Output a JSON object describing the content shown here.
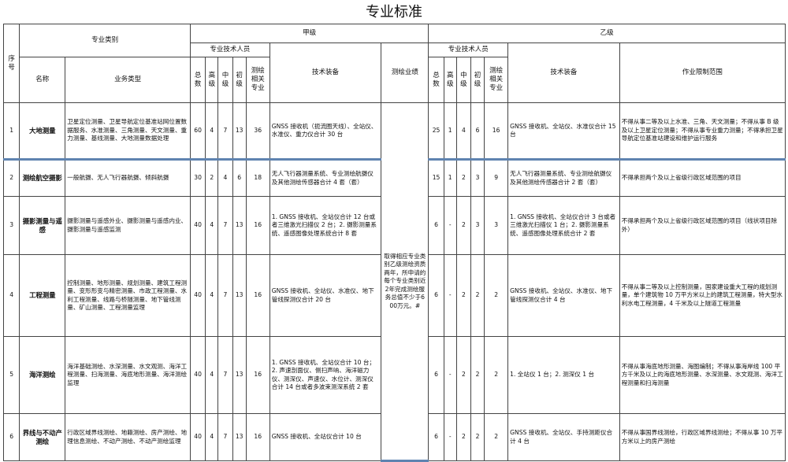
{
  "title": "专业标准",
  "headers": {
    "seq": "序号",
    "category": "专业类别",
    "grade_a": "甲级",
    "grade_b": "乙级",
    "staff": "专业技术人员",
    "survey_major": "测绘专业",
    "name": "名称",
    "biz": "业务类型",
    "total": "总数",
    "high": "高级",
    "mid": "中级",
    "init": "初级",
    "related": "测绘相关专业",
    "equip": "技术装备",
    "perf": "测绘业绩",
    "limit": "作业限制范围"
  },
  "performance_text": "取得相应专业类别乙级测绘资质两年，所申请的每个专业类别近2年完成测绘服务总值不少于600万元。#",
  "rows": [
    {
      "no": "1",
      "name": "大地测量",
      "biz": "卫星定位测量、卫星导航定位基准站网位置数据服务、水准测量、三角测量、天文测量、重力测量、基线测量、大地测量数据处理",
      "a": {
        "total": "60",
        "high": "4",
        "mid": "7",
        "init": "13",
        "related": "36",
        "equip": "GNSS 接收机（扼流圈天线）、全站仪、水准仪、重力仪合计 30 台"
      },
      "b": {
        "total": "25",
        "high": "1",
        "mid": "4",
        "init": "6",
        "related": "16",
        "equip": "GNSS 接收机、全站仪、水准仪合计 15 台"
      },
      "limit": "不得从事二等及以上水准、三角、天文测量；不得从事 B 级及以上卫星定位测量；不得从事专业重力测量；不得承担卫星导航定位基准站建设和维护运行服务"
    },
    {
      "no": "2",
      "name": "测绘航空摄影",
      "biz": "一般航摄、无人飞行器航摄、倾斜航摄",
      "a": {
        "total": "30",
        "high": "2",
        "mid": "4",
        "init": "6",
        "related": "18",
        "equip": "无人飞行器测量系统、专业测绘航摄仪及其他测绘传感器合计 4 套（套）"
      },
      "b": {
        "total": "15",
        "high": "1",
        "mid": "2",
        "init": "3",
        "related": "9",
        "equip": "无人飞行器测量系统、专业测绘航摄仪及其他测绘传感器合计 2 套（套）"
      },
      "limit": "不得承担两个及以上省级行政区域范围的项目"
    },
    {
      "no": "3",
      "name": "摄影测量与遥感",
      "biz": "摄影测量与遥感外业、摄影测量与遥感内业、摄影测量与遥感监测",
      "a": {
        "total": "40",
        "high": "4",
        "mid": "7",
        "init": "13",
        "related": "16",
        "equip": "1. GNSS 接收机、全站仪合计 12 台或者三维激光扫描仪 2 台；2. 摄影测量系统、遥感图像处理系统合计 8 套"
      },
      "b": {
        "total": "6",
        "high": "-",
        "mid": "2",
        "init": "3",
        "related": "3",
        "equip": "1. GNSS 接收机、全站仪合计 3 台或者三维激光扫描仪 1 台；2. 摄影测量系统、遥感图像处理系统合计 2 套"
      },
      "limit": "不得承担两个及以上省级行政区域范围的项目（线状项目除外）"
    },
    {
      "no": "4",
      "name": "工程测量",
      "biz": "控制测量、地形测量、规划测量、建筑工程测量、变形形变与精密测量、市政工程测量、水利工程测量、线路与桥隧测量、地下管线测量、矿山测量、工程测量监理",
      "a": {
        "total": "40",
        "high": "4",
        "mid": "7",
        "init": "13",
        "related": "16",
        "equip": "GNSS 接收机、全站仪、水准仪、地下管线探测仪合计 20 台"
      },
      "b": {
        "total": "6",
        "high": "-",
        "mid": "2",
        "init": "2",
        "related": "2",
        "equip": "GNSS 接收机、全站仪、水准仪、地下管线探测仪合计 4 台"
      },
      "limit": "不得从事二等及以上控制测量，国家建设重大工程的规划测量，单个建筑物 10 万平方米以上的建筑工程测量，特大型水利水电工程测量，4 千米及以上隧道工程测量"
    },
    {
      "no": "5",
      "name": "海洋测绘",
      "biz": "海洋基础测绘、水深测量、水文观测、海洋工程测量、扫海测量、海底地形测量、海洋测绘监理",
      "a": {
        "total": "40",
        "high": "4",
        "mid": "7",
        "init": "13",
        "related": "16",
        "equip": "1. GNSS 接收机、全站仪合计 10 台；2. 声速剖面仪、侧扫声呐、海洋磁力仪、测深仪、声速仪、水位计、测深仪合计 14 台或者多波束测深系统 2 套"
      },
      "b": {
        "total": "6",
        "high": "-",
        "mid": "2",
        "init": "2",
        "related": "2",
        "equip": "1. 全站仪 1 台；2. 测深仪 1 台"
      },
      "limit": "不得从事海底地形测量、海图编制；不得从事海岸线 100 平方千米及以上的海底地形测量、水深测量、水文观测、海洋工程测量和扫海测量"
    },
    {
      "no": "6",
      "name": "界线与不动产测绘",
      "biz": "行政区域界线测绘、地籍测绘、房产测绘、地理信息测绘、不动产测绘、不动产测绘监理",
      "a": {
        "total": "40",
        "high": "4",
        "mid": "7",
        "init": "13",
        "related": "16",
        "equip": "GNSS 接收机、全站仪合计 10 台"
      },
      "b": {
        "total": "6",
        "high": "-",
        "mid": "2",
        "init": "2",
        "related": "2",
        "equip": "GNSS 接收机、全站仪、手持测距仪合计 4 台"
      },
      "limit": "不得从事国界线测绘，行政区域界线测绘；不得从事 10 万平方米以上的房产测绘"
    }
  ]
}
